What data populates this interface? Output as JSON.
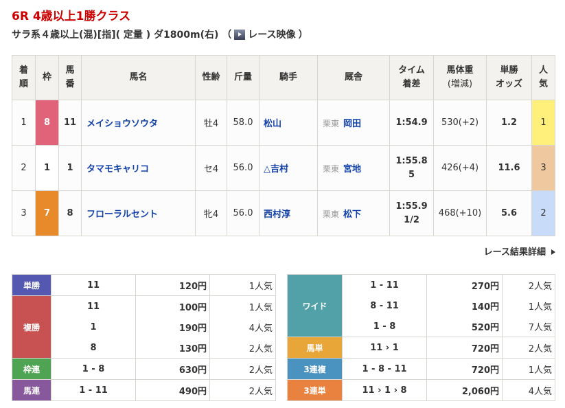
{
  "race": {
    "title": "6R 4歳以上1勝クラス",
    "conditions": "サラ系４歳以上(混)[指]( 定量 ) ダ1800m(右) （",
    "video_label": "レース映像",
    "close_paren": "）"
  },
  "results": {
    "headers": [
      "着順",
      "枠",
      "馬番",
      "馬名",
      "性齢",
      "斤量",
      "騎手",
      "厩舎",
      "タイム着差",
      "馬体重(増減)",
      "単勝オッズ",
      "人気"
    ],
    "header_lines": [
      [
        "着",
        "順"
      ],
      [
        "枠"
      ],
      [
        "馬",
        "番"
      ],
      [
        "馬名"
      ],
      [
        "性齢"
      ],
      [
        "斤量"
      ],
      [
        "騎手"
      ],
      [
        "厩舎"
      ],
      [
        "タイム",
        "着差"
      ],
      [
        "馬体重",
        "(増減)"
      ],
      [
        "単勝",
        "オッズ"
      ],
      [
        "人",
        "気"
      ]
    ],
    "rows": [
      {
        "rank": "1",
        "frame": "8",
        "frame_color": "#e0637a",
        "num": "11",
        "horse": "メイショウソウタ",
        "sexage": "牡4",
        "weight": "58.0",
        "jockey": "松山",
        "region": "栗東",
        "trainer": "岡田",
        "time": "1:54.9",
        "margin": "",
        "body": "530(+2)",
        "odds": "1.2",
        "pop": "1",
        "pop_color": "#fff07c"
      },
      {
        "rank": "2",
        "frame": "1",
        "frame_color": "#ffffff",
        "num": "1",
        "horse": "タマモキャリコ",
        "sexage": "セ4",
        "weight": "56.0",
        "jockey": "△吉村",
        "region": "栗東",
        "trainer": "宮地",
        "time": "1:55.8",
        "margin": "5",
        "body": "426(+4)",
        "odds": "11.6",
        "pop": "3",
        "pop_color": "#f0c8a0"
      },
      {
        "rank": "3",
        "frame": "7",
        "frame_color": "#e8892a",
        "num": "8",
        "horse": "フローラルセント",
        "sexage": "牝4",
        "weight": "56.0",
        "jockey": "西村淳",
        "region": "栗東",
        "trainer": "松下",
        "time": "1:55.9",
        "margin": "1/2",
        "body": "468(+10)",
        "odds": "5.6",
        "pop": "2",
        "pop_color": "#c8dcfa"
      }
    ]
  },
  "detail_link": "レース結果詳細",
  "payouts_left": [
    {
      "type": "単勝",
      "color": "#5558b0",
      "entries": [
        {
          "combo": "11",
          "amount": "120円",
          "pop": "1人気"
        }
      ]
    },
    {
      "type": "複勝",
      "color": "#c85252",
      "entries": [
        {
          "combo": "11",
          "amount": "100円",
          "pop": "1人気"
        },
        {
          "combo": "1",
          "amount": "190円",
          "pop": "4人気"
        },
        {
          "combo": "8",
          "amount": "130円",
          "pop": "2人気"
        }
      ]
    },
    {
      "type": "枠連",
      "color": "#4ea452",
      "entries": [
        {
          "combo": "1 - 8",
          "amount": "630円",
          "pop": "2人気"
        }
      ]
    },
    {
      "type": "馬連",
      "color": "#88589c",
      "entries": [
        {
          "combo": "1 - 11",
          "amount": "490円",
          "pop": "2人気"
        }
      ]
    }
  ],
  "payouts_right": [
    {
      "type": "ワイド",
      "color": "#52a0a8",
      "entries": [
        {
          "combo": "1 - 11",
          "amount": "270円",
          "pop": "2人気"
        },
        {
          "combo": "8 - 11",
          "amount": "140円",
          "pop": "1人気"
        },
        {
          "combo": "1 - 8",
          "amount": "520円",
          "pop": "7人気"
        }
      ]
    },
    {
      "type": "馬単",
      "color": "#e8a638",
      "entries": [
        {
          "combo": "11 › 1",
          "amount": "720円",
          "pop": "2人気"
        }
      ]
    },
    {
      "type": "3連複",
      "color": "#4a92c0",
      "entries": [
        {
          "combo": "1 - 8 - 11",
          "amount": "720円",
          "pop": "1人気"
        }
      ]
    },
    {
      "type": "3連単",
      "color": "#e8823e",
      "entries": [
        {
          "combo": "11 › 1 › 8",
          "amount": "2,060円",
          "pop": "4人気"
        }
      ]
    }
  ]
}
